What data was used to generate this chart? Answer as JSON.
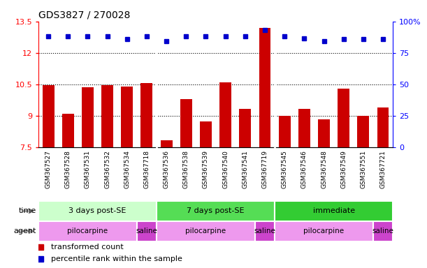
{
  "title": "GDS3827 / 270028",
  "samples": [
    "GSM367527",
    "GSM367528",
    "GSM367531",
    "GSM367532",
    "GSM367534",
    "GSM367718",
    "GSM367536",
    "GSM367538",
    "GSM367539",
    "GSM367540",
    "GSM367541",
    "GSM367719",
    "GSM367545",
    "GSM367546",
    "GSM367548",
    "GSM367549",
    "GSM367551",
    "GSM367721"
  ],
  "bar_values": [
    10.45,
    9.1,
    10.35,
    10.45,
    10.4,
    10.55,
    7.85,
    9.8,
    8.75,
    10.6,
    9.35,
    13.2,
    9.0,
    9.35,
    8.85,
    10.3,
    9.0,
    9.4
  ],
  "dot_values": [
    12.8,
    12.8,
    12.8,
    12.8,
    12.65,
    12.8,
    12.55,
    12.8,
    12.8,
    12.8,
    12.8,
    13.1,
    12.8,
    12.7,
    12.55,
    12.65,
    12.65,
    12.65
  ],
  "bar_color": "#cc0000",
  "dot_color": "#0000cc",
  "ylim_left": [
    7.5,
    13.5
  ],
  "ylim_right": [
    0,
    100
  ],
  "yticks_left": [
    7.5,
    9.0,
    10.5,
    12.0,
    13.5
  ],
  "ytick_labels_left": [
    "7.5",
    "9",
    "10.5",
    "12",
    "13.5"
  ],
  "yticks_right": [
    0,
    25,
    50,
    75,
    100
  ],
  "ytick_labels_right": [
    "0",
    "25",
    "50",
    "75",
    "100%"
  ],
  "grid_values": [
    9.0,
    10.5,
    12.0
  ],
  "time_groups": [
    {
      "label": "3 days post-SE",
      "start": 0,
      "end": 6,
      "color": "#ccffcc"
    },
    {
      "label": "7 days post-SE",
      "start": 6,
      "end": 12,
      "color": "#55dd55"
    },
    {
      "label": "immediate",
      "start": 12,
      "end": 18,
      "color": "#33cc33"
    }
  ],
  "agent_groups": [
    {
      "label": "pilocarpine",
      "start": 0,
      "end": 5,
      "color": "#ee99ee"
    },
    {
      "label": "saline",
      "start": 5,
      "end": 6,
      "color": "#cc44cc"
    },
    {
      "label": "pilocarpine",
      "start": 6,
      "end": 11,
      "color": "#ee99ee"
    },
    {
      "label": "saline",
      "start": 11,
      "end": 12,
      "color": "#cc44cc"
    },
    {
      "label": "pilocarpine",
      "start": 12,
      "end": 17,
      "color": "#ee99ee"
    },
    {
      "label": "saline",
      "start": 17,
      "end": 18,
      "color": "#cc44cc"
    }
  ],
  "legend_items": [
    {
      "label": "transformed count",
      "color": "#cc0000"
    },
    {
      "label": "percentile rank within the sample",
      "color": "#0000cc"
    }
  ],
  "bar_bottom": 7.5,
  "background_color": "#ffffff",
  "plot_bg": "#ffffff",
  "tick_area_bg": "#dddddd"
}
